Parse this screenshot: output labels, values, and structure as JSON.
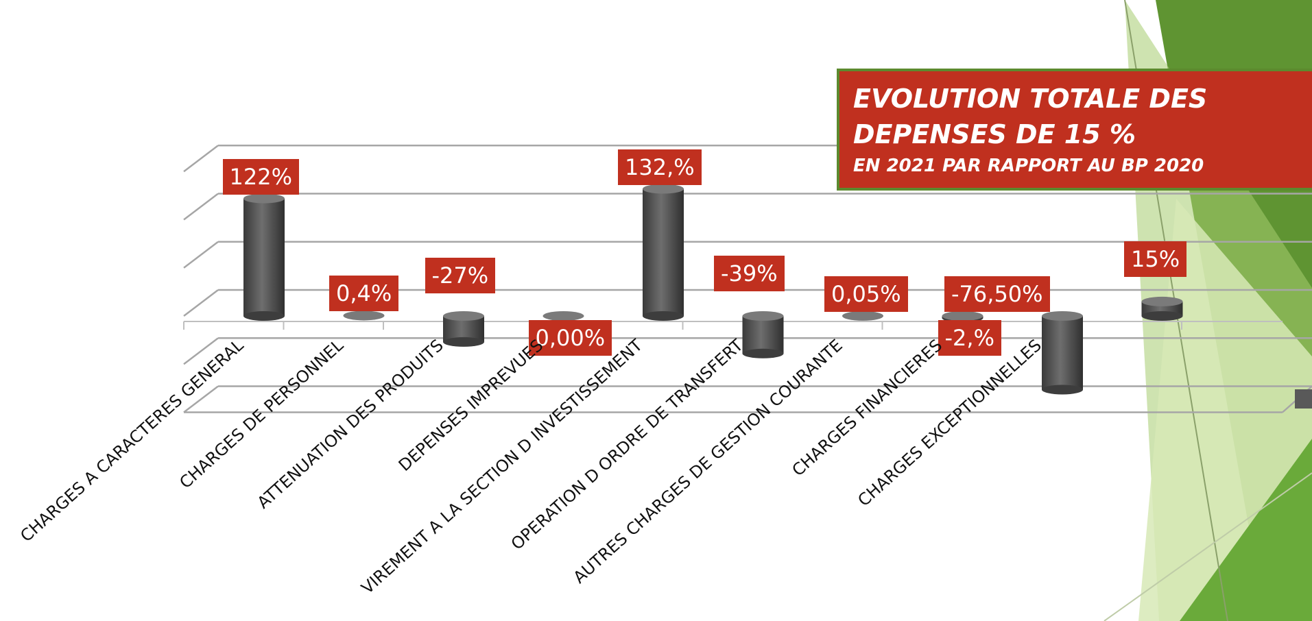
{
  "chart_data": {
    "type": "bar",
    "style": "3d-cylinder",
    "categories": [
      "CHARGES A CARACTERES GENERAL",
      "CHARGES DE PERSONNEL",
      "ATTENUATION DES PRODUITS",
      "DEPENSES IMPREVUES",
      "VIREMENT A LA SECTION D INVESTISSEMENT",
      "OPERATION D ORDRE DE TRANSFERT",
      "AUTRES CHARGES DE GESTION COURANTE",
      "CHARGES FINANCIERES",
      "CHARGES EXCEPTIONNELLES",
      ""
    ],
    "values": [
      122,
      0.4,
      -27,
      0,
      132,
      -39,
      0.05,
      -2,
      -76.5,
      15
    ],
    "data_labels": [
      "122%",
      "0,4%",
      "-27%",
      "0,00%",
      "132,%",
      "-39%",
      "0,05%",
      "-2,%",
      "-76,50%",
      "15%"
    ],
    "ylim": [
      -100,
      150
    ],
    "grid": true,
    "bar_color": "#595959",
    "label_color": "#c0301f"
  },
  "title_box": {
    "line1": "EVOLUTION TOTALE DES",
    "line2": "DEPENSES DE 15 %",
    "subtitle": "EN 2021 PAR RAPPORT AU BP 2020",
    "background": "#c0301f",
    "border": "#5c8a2e"
  },
  "theme": {
    "accent_dark": "#5c8a2e",
    "accent_light": "#d7e9b6"
  }
}
